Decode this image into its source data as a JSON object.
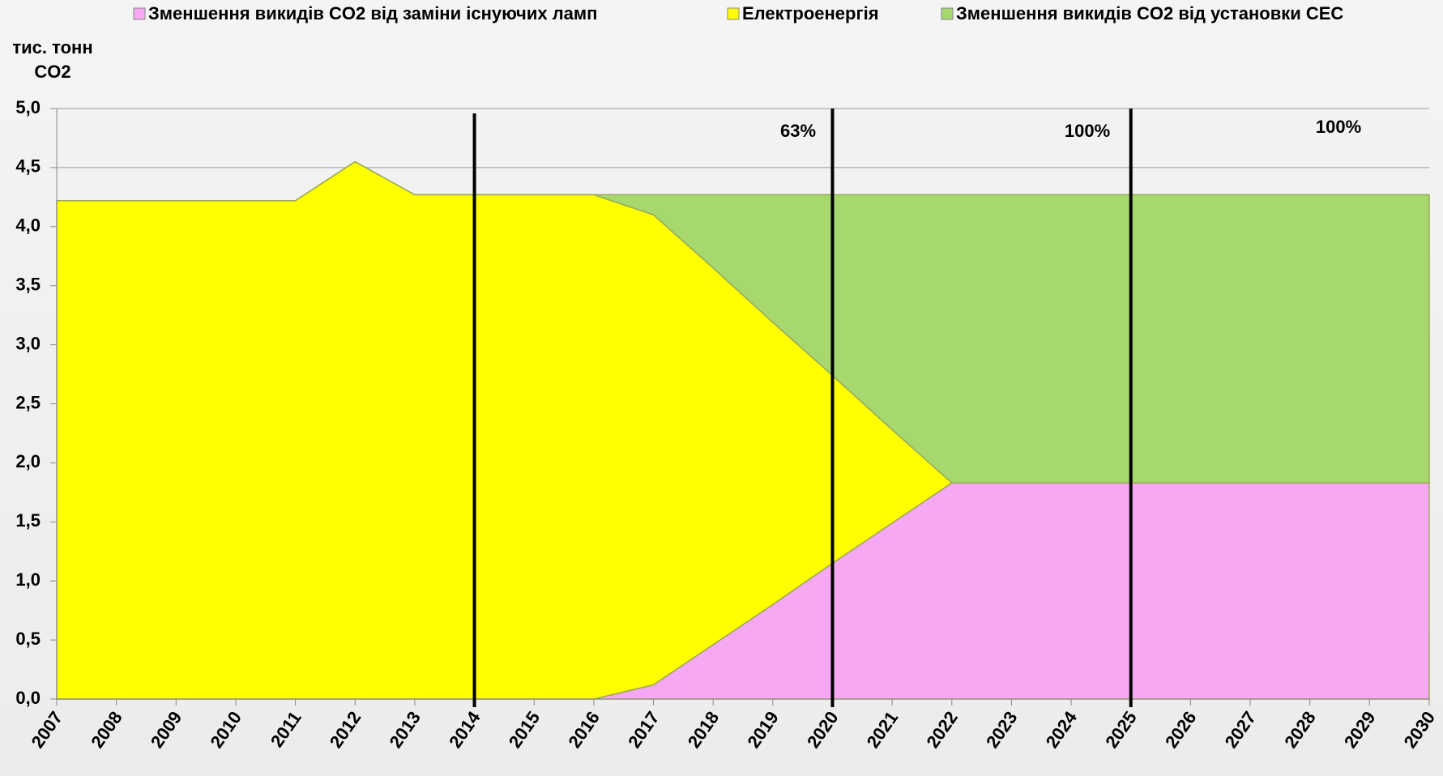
{
  "chart_data": {
    "type": "stacked_area",
    "y_label": "тис. тонн CO2",
    "categories": [
      "2007",
      "2008",
      "2009",
      "2010",
      "2011",
      "2012",
      "2013",
      "2014",
      "2015",
      "2016",
      "2017",
      "2018",
      "2019",
      "2020",
      "2021",
      "2022",
      "2023",
      "2024",
      "2025",
      "2026",
      "2027",
      "2028",
      "2029",
      "2030"
    ],
    "series": [
      {
        "name": "Зменшення викидів CO2 від заміни існуючих ламп",
        "color": "#f7a8f2",
        "values": [
          0,
          0,
          0,
          0,
          0,
          0,
          0,
          0,
          0,
          0,
          0.12,
          0.46,
          0.8,
          1.15,
          1.49,
          1.83,
          1.83,
          1.83,
          1.83,
          1.83,
          1.83,
          1.83,
          1.83,
          1.83
        ]
      },
      {
        "name": "Електроенергія",
        "color": "#ffff00",
        "values": [
          4.22,
          4.22,
          4.22,
          4.22,
          4.22,
          4.55,
          4.27,
          4.27,
          4.27,
          4.27,
          3.98,
          3.19,
          2.39,
          1.59,
          0.79,
          0,
          0,
          0,
          0,
          0,
          0,
          0,
          0,
          0
        ]
      },
      {
        "name": "Зменшення викидів CO2 від установки СЕС",
        "color": "#a6d86e",
        "values": [
          0,
          0,
          0,
          0,
          0,
          0,
          0,
          0,
          0,
          0,
          0.17,
          0.62,
          1.08,
          1.53,
          1.99,
          2.44,
          2.44,
          2.44,
          2.44,
          2.44,
          2.44,
          2.44,
          2.44,
          2.44
        ]
      }
    ],
    "ylim": [
      0,
      5
    ],
    "yticks": [
      {
        "value": 0,
        "label": "0,0"
      },
      {
        "value": 0.5,
        "label": "0,5"
      },
      {
        "value": 1,
        "label": "1,0"
      },
      {
        "value": 1.5,
        "label": "1,5"
      },
      {
        "value": 2,
        "label": "2,0"
      },
      {
        "value": 2.5,
        "label": "2,5"
      },
      {
        "value": 3,
        "label": "3,0"
      },
      {
        "value": 3.5,
        "label": "3,5"
      },
      {
        "value": 4,
        "label": "4,0"
      },
      {
        "value": 4.5,
        "label": "4,5"
      },
      {
        "value": 5,
        "label": "5,0"
      }
    ],
    "grid": true,
    "vlines": [
      "2014",
      "2020",
      "2025"
    ],
    "annotations": [
      "63%",
      "100%",
      "100%"
    ]
  }
}
